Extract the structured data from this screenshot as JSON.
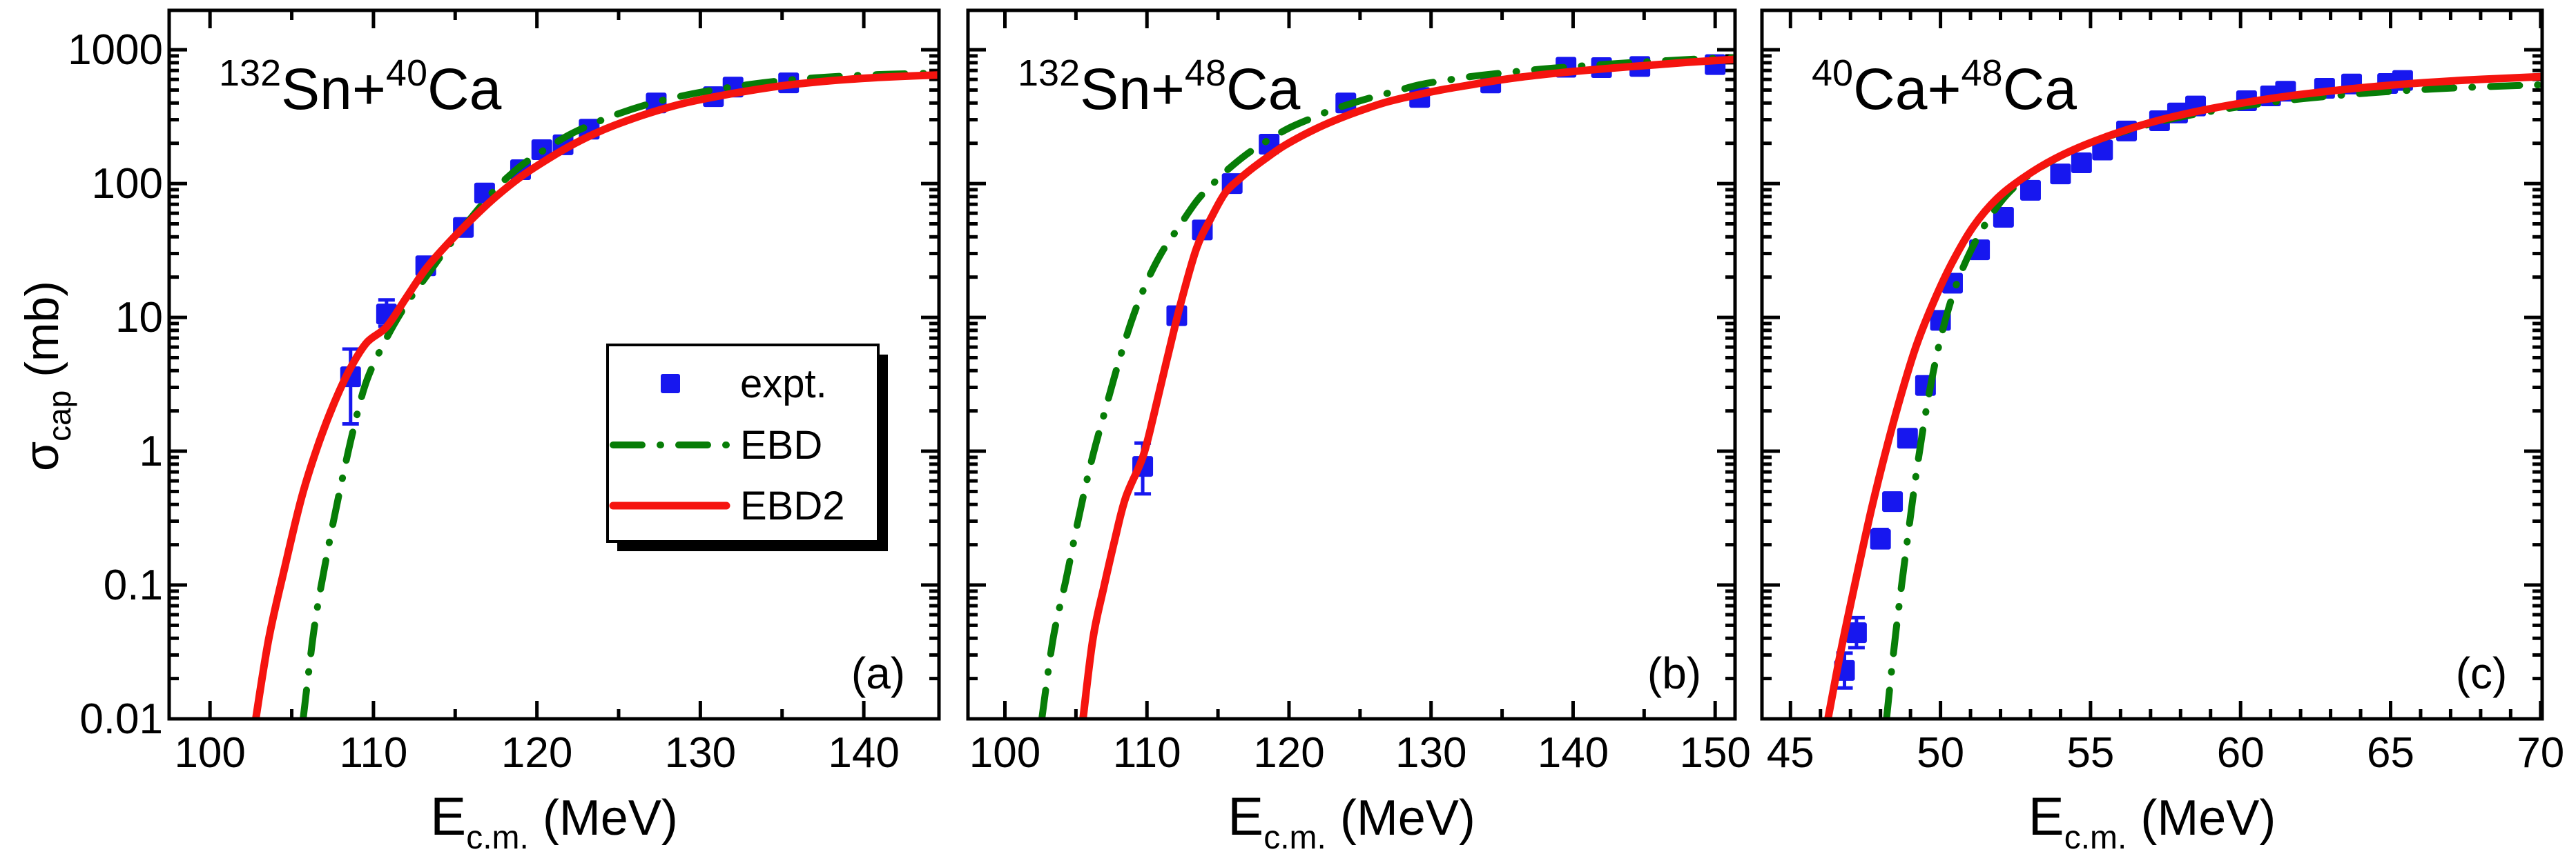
{
  "figure": {
    "background": "#ffffff",
    "frame_color": "#000000",
    "colors": {
      "expt": "#1717ef",
      "ebd": "#077d07",
      "ebd2": "#f5140f"
    },
    "y_axis": {
      "label_symbol": "σ",
      "label_subscript": "cap",
      "label_units": "(mb)",
      "scale": "log",
      "range": [
        0.01,
        1970
      ],
      "tick_values": [
        1000,
        100,
        10,
        1,
        0.1,
        0.01
      ],
      "tick_labels": [
        "1000",
        "100",
        "10",
        "1",
        "0.1",
        "0.01"
      ]
    },
    "x_axis": {
      "label_symbol": "E",
      "label_subscript": "c.m.",
      "label_units": "(MeV)"
    },
    "legend": {
      "entries": [
        {
          "label": "expt.",
          "marker": "square",
          "color": "#1717ef"
        },
        {
          "label": "EBD",
          "marker": "dash-dot-line",
          "color": "#077d07"
        },
        {
          "label": "EBD2",
          "marker": "solid-line",
          "color": "#f5140f"
        }
      ]
    }
  },
  "chart_data": [
    {
      "id": "a",
      "panel_label": "(a)",
      "type": "line+scatter",
      "title_segments": [
        {
          "text": "132",
          "sup": true
        },
        {
          "text": "Sn+"
        },
        {
          "text": "40",
          "sup": true
        },
        {
          "text": "Ca"
        }
      ],
      "xlim": [
        97.5,
        144.6
      ],
      "ylim": [
        0.01,
        1970
      ],
      "x_major_ticks": [
        100,
        110,
        120,
        130,
        140
      ],
      "x_minor_step": 5,
      "series": {
        "expt": {
          "E": [
            108.6,
            110.8,
            113.2,
            115.5,
            116.8,
            119.0,
            120.3,
            121.6,
            123.2,
            127.3,
            130.8,
            132.0,
            135.4
          ],
          "sigma": [
            3.6,
            10.6,
            24.3,
            47,
            85,
            127,
            179,
            195,
            255,
            400,
            446,
            526,
            566
          ],
          "err_lo": [
            1.6,
            8.6,
            null,
            null,
            null,
            null,
            null,
            null,
            null,
            null,
            null,
            null,
            null
          ],
          "err_hi": [
            5.8,
            13.5,
            null,
            null,
            null,
            null,
            null,
            null,
            null,
            null,
            null,
            null,
            null
          ]
        },
        "EBD": {
          "E": [
            105.7,
            106.4,
            107.2,
            108.0,
            108.8,
            109.6,
            110.8,
            112.0,
            113.2,
            114.5,
            116.0,
            117.5,
            119.0,
            120.5,
            122.0,
            123.5,
            125.0,
            127.0,
            129.0,
            131.0,
            133.0,
            135.0,
            137.0,
            139.0,
            141.0,
            143.0,
            144.6
          ],
          "sigma": [
            0.01,
            0.05,
            0.18,
            0.55,
            1.5,
            3.4,
            7.0,
            12.5,
            20,
            33,
            56,
            92,
            135,
            180,
            232,
            282,
            333,
            398,
            455,
            505,
            550,
            588,
            616,
            638,
            653,
            663,
            670
          ]
        },
        "EBD2": {
          "E": [
            102.8,
            103.6,
            104.6,
            105.6,
            106.6,
            107.6,
            108.6,
            109.6,
            110.8,
            112.0,
            113.2,
            114.5,
            116.0,
            117.5,
            119.0,
            120.5,
            122.0,
            123.5,
            125.0,
            127.0,
            129.0,
            131.0,
            133.0,
            135.0,
            137.0,
            139.0,
            141.0,
            143.0,
            144.6
          ],
          "sigma": [
            0.01,
            0.04,
            0.14,
            0.45,
            1.1,
            2.3,
            4.2,
            6.5,
            8.5,
            14,
            23,
            35,
            54,
            80,
            112,
            148,
            190,
            235,
            280,
            340,
            398,
            448,
            495,
            538,
            572,
            600,
            622,
            638,
            648
          ]
        }
      }
    },
    {
      "id": "b",
      "panel_label": "(b)",
      "type": "line+scatter",
      "title_segments": [
        {
          "text": "132",
          "sup": true
        },
        {
          "text": "Sn+"
        },
        {
          "text": "48",
          "sup": true
        },
        {
          "text": "Ca"
        }
      ],
      "xlim": [
        97.4,
        151.4
      ],
      "ylim": [
        0.01,
        1970
      ],
      "x_major_ticks": [
        100,
        110,
        120,
        130,
        140,
        150
      ],
      "x_minor_step": 5,
      "series": {
        "expt": {
          "E": [
            109.7,
            112.1,
            113.9,
            116.0,
            118.6,
            124.0,
            129.2,
            134.2,
            139.5,
            142.0,
            144.7,
            150.0
          ],
          "sigma": [
            0.77,
            10.3,
            45,
            100,
            197,
            400,
            440,
            565,
            740,
            735,
            750,
            775
          ],
          "err_lo": [
            0.48,
            null,
            null,
            null,
            null,
            null,
            null,
            null,
            null,
            null,
            null,
            null
          ],
          "err_hi": [
            1.15,
            null,
            null,
            null,
            null,
            null,
            null,
            null,
            null,
            null,
            null,
            null
          ]
        },
        "EBD": {
          "E": [
            102.6,
            103.4,
            104.3,
            105.2,
            106.1,
            107.1,
            108.0,
            109.0,
            110.0,
            111.0,
            112.1,
            113.5,
            114.5,
            115.5,
            117.0,
            118.5,
            120.0,
            121.5,
            123.0,
            124.5,
            126.0,
            127.5,
            129.2,
            131.0,
            133.0,
            135.0,
            137.0,
            139.0,
            141.0,
            143.0,
            145.0,
            147.0,
            149.0,
            151.4
          ],
          "sigma": [
            0.01,
            0.04,
            0.11,
            0.32,
            0.85,
            2.1,
            4.6,
            10,
            18.5,
            30,
            45,
            74,
            96,
            122,
            165,
            210,
            260,
            305,
            355,
            400,
            445,
            490,
            548,
            590,
            635,
            670,
            705,
            735,
            762,
            788,
            812,
            833,
            855,
            875
          ]
        },
        "EBD2": {
          "E": [
            105.5,
            106.2,
            107.0,
            107.7,
            108.5,
            109.7,
            110.5,
            111.4,
            112.4,
            113.5,
            114.5,
            115.5,
            116.5,
            117.5,
            118.5,
            119.6,
            121.0,
            122.5,
            124.0,
            125.5,
            127.0,
            129.2,
            131.0,
            132.5,
            134.0,
            136.0,
            138.0,
            140.0,
            142.0,
            144.0,
            146.0,
            148.0,
            150.0,
            151.4
          ],
          "sigma": [
            0.01,
            0.04,
            0.1,
            0.21,
            0.45,
            0.9,
            1.9,
            4.8,
            13,
            33,
            55,
            85,
            108,
            132,
            158,
            190,
            230,
            275,
            320,
            365,
            410,
            465,
            508,
            540,
            575,
            618,
            655,
            688,
            718,
            748,
            775,
            805,
            830,
            848
          ]
        }
      }
    },
    {
      "id": "c",
      "panel_label": "(c)",
      "type": "line+scatter",
      "title_segments": [
        {
          "text": "40",
          "sup": true
        },
        {
          "text": "Ca+"
        },
        {
          "text": "48",
          "sup": true
        },
        {
          "text": "Ca"
        }
      ],
      "xlim": [
        44.05,
        70.05
      ],
      "ylim": [
        0.01,
        1970
      ],
      "x_major_ticks": [
        45,
        50,
        55,
        60,
        65,
        70
      ],
      "x_minor_step": 1,
      "series": {
        "expt": {
          "E": [
            46.8,
            47.2,
            48.0,
            48.4,
            48.9,
            49.5,
            50.0,
            50.4,
            51.3,
            52.1,
            53.0,
            54.0,
            54.7,
            55.4,
            56.2,
            57.3,
            57.9,
            58.5,
            60.2,
            61.0,
            61.5,
            62.8,
            63.7,
            64.9,
            65.4
          ],
          "sigma": [
            0.023,
            0.044,
            0.22,
            0.42,
            1.25,
            3.1,
            9.5,
            18,
            32,
            56,
            89,
            118,
            143,
            178,
            247,
            295,
            337,
            380,
            416,
            452,
            490,
            515,
            555,
            560,
            590
          ],
          "err_lo": [
            0.017,
            0.034,
            0.19,
            null,
            null,
            null,
            null,
            null,
            null,
            null,
            null,
            null,
            132,
            165,
            230,
            null,
            null,
            null,
            388,
            420,
            null,
            null,
            null,
            null,
            548
          ],
          "err_hi": [
            0.031,
            0.057,
            0.26,
            null,
            null,
            null,
            null,
            null,
            null,
            null,
            null,
            null,
            155,
            192,
            265,
            null,
            null,
            null,
            446,
            485,
            null,
            null,
            null,
            null,
            635
          ]
        },
        "EBD": {
          "E": [
            48.2,
            48.5,
            48.85,
            49.2,
            49.55,
            49.95,
            50.4,
            50.9,
            51.5,
            52.2,
            53.0,
            54.0,
            55.1,
            56.3,
            57.5,
            58.8,
            60.2,
            61.7,
            63.2,
            64.7,
            66.2,
            67.7,
            69.2,
            70.05
          ],
          "sigma": [
            0.01,
            0.042,
            0.18,
            0.7,
            2.2,
            6.2,
            14.5,
            28,
            50,
            82,
            118,
            160,
            205,
            252,
            297,
            340,
            382,
            422,
            455,
            483,
            506,
            525,
            540,
            547
          ]
        },
        "EBD2": {
          "E": [
            46.25,
            46.7,
            47.2,
            47.7,
            48.2,
            48.7,
            49.2,
            49.8,
            50.4,
            51.1,
            51.9,
            52.8,
            53.8,
            54.9,
            56.1,
            57.3,
            58.6,
            60.0,
            61.5,
            63.0,
            64.5,
            66.0,
            67.5,
            69.0,
            70.05
          ],
          "sigma": [
            0.01,
            0.034,
            0.115,
            0.37,
            1.05,
            2.7,
            6.2,
            13.5,
            26,
            48,
            78,
            112,
            153,
            198,
            248,
            298,
            348,
            398,
            448,
            492,
            532,
            565,
            593,
            615,
            630
          ]
        }
      }
    }
  ]
}
